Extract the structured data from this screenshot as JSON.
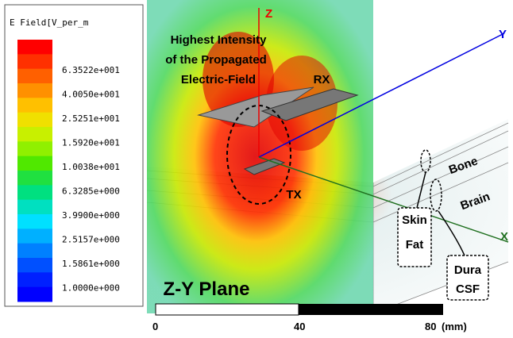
{
  "legend": {
    "title": "E Field[V_per_m",
    "labels": [
      "6.3522e+001",
      "4.0050e+001",
      "2.5251e+001",
      "1.5920e+001",
      "1.0038e+001",
      "6.3285e+000",
      "3.9900e+000",
      "2.5157e+000",
      "1.5861e+000",
      "1.0000e+000"
    ]
  },
  "annotations": {
    "highest": [
      "Highest Intensity",
      "of the Propagated",
      "Electric-Field"
    ],
    "rx": "RX",
    "tx": "TX",
    "bone": "Bone",
    "brain": "Brain",
    "skin_fat": [
      "Skin",
      "Fat"
    ],
    "dura_csf": [
      "Dura",
      "CSF"
    ],
    "plane": "Z-Y Plane"
  },
  "axes": {
    "z": "Z",
    "y": "Y",
    "x": "X"
  },
  "scale_bar": {
    "ticks": [
      "0",
      "40",
      "80"
    ],
    "unit": "(mm)"
  }
}
